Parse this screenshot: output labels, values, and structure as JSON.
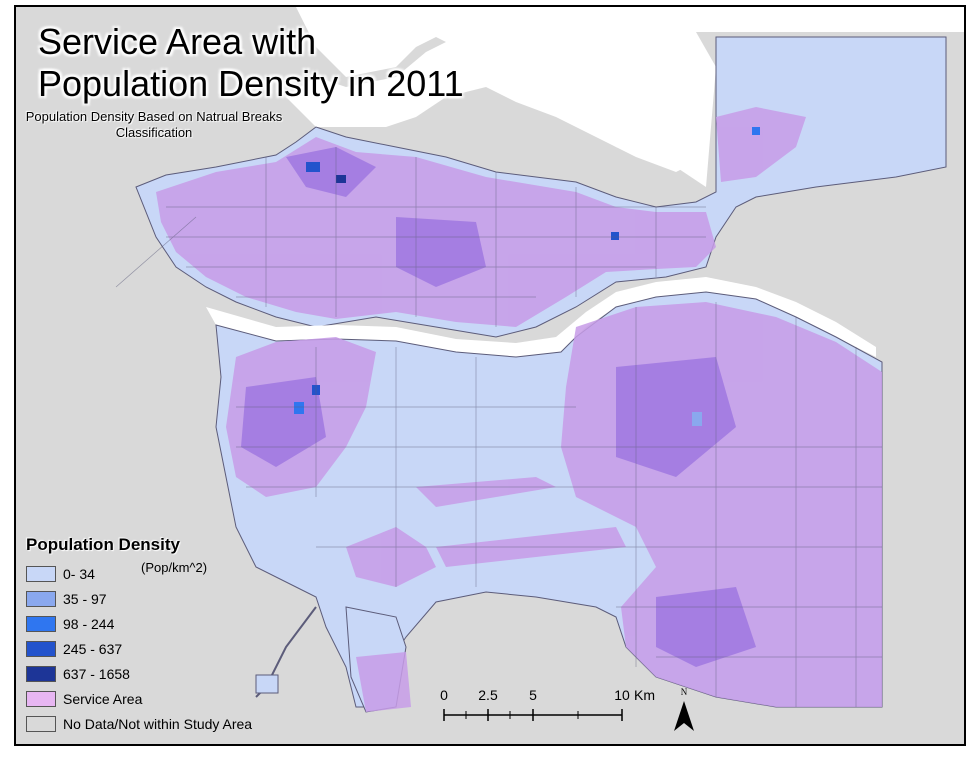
{
  "map": {
    "title": "Service Area with\nPopulation Density in 2011",
    "subtitle": "Population Density Based on Natrual Breaks Classification"
  },
  "legend": {
    "title": "Population Density",
    "unit": "(Pop/km^2)",
    "items": [
      {
        "label": "0- 34",
        "color": "#c8d7f7"
      },
      {
        "label": "35 - 97",
        "color": "#8aa8ee"
      },
      {
        "label": "98 - 244",
        "color": "#2f76f0"
      },
      {
        "label": "245 - 637",
        "color": "#2353cc"
      },
      {
        "label": "637 - 1658",
        "color": "#1d3597"
      },
      {
        "label": "Service Area",
        "color": "#e7b6f2"
      },
      {
        "label": "No Data/Not within Study Area",
        "color": "#d9d9d9"
      }
    ]
  },
  "scalebar": {
    "ticks": [
      "0",
      "2.5",
      "5",
      "10"
    ],
    "unit": "Km"
  },
  "north_arrow": {
    "label": "N"
  },
  "colors": {
    "water": "#ffffff",
    "no_data": "#d9d9d9",
    "low_density": "#c8d7f7",
    "service_area": "#c79ce8",
    "dense_core": "#9c74e0",
    "roads": "#5c5c7a"
  }
}
